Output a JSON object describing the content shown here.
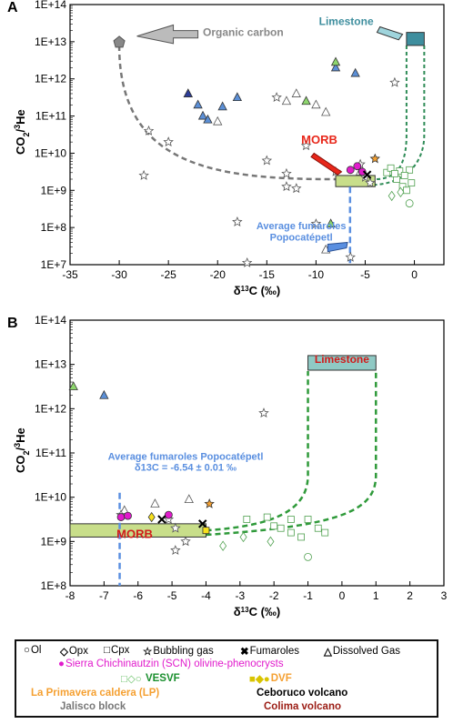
{
  "chart_data": [
    {
      "panel": "A",
      "type": "scatter",
      "xlabel": "δ13C (‰)",
      "ylabel": "CO2/3He",
      "xlim": [
        -35,
        3
      ],
      "ylim_log10": [
        7,
        14
      ],
      "x_ticks": [
        "-35",
        "-30",
        "-25",
        "-20",
        "-15",
        "-10",
        "-5",
        "0"
      ],
      "x_tick_values": [
        -35,
        -30,
        -25,
        -20,
        -15,
        -10,
        -5,
        0
      ],
      "y_ticks": [
        "1E+7",
        "1E+8",
        "1E+9",
        "1E+10",
        "1E+11",
        "1E+12",
        "1E+13",
        "1E+14"
      ],
      "y_tick_values": [
        7,
        8,
        9,
        10,
        11,
        12,
        13,
        14
      ],
      "annotations": {
        "organic": "Organic carbon",
        "limestone": "Limestone",
        "morb": "MORB",
        "fumaroles_line1": "Average fumaroles",
        "fumaroles_line2": "Popocatépetl"
      },
      "endmembers": {
        "organic_carbon": {
          "x": -30,
          "y_log10": 13.0
        },
        "limestone": {
          "x": 0,
          "y_log10": 13.1
        },
        "morb": {
          "x_range": [
            -8,
            -4
          ],
          "y_log10_range": [
            9.1,
            9.4
          ]
        }
      },
      "fumaroles_popocatepetl_x": -6.54,
      "series": [
        {
          "name": "Jalisco block",
          "marker": "triangle",
          "color": "#5b8fd6",
          "points": [
            [
              -23,
              11.6
            ],
            [
              -22,
              11.3
            ],
            [
              -21.5,
              11
            ],
            [
              -21,
              10.9
            ],
            [
              -19.5,
              11.25
            ],
            [
              -18,
              11.5
            ],
            [
              -8,
              12.3
            ],
            [
              -6,
              12.15
            ]
          ]
        },
        {
          "name": "Ceboruco volcano",
          "marker": "triangle",
          "color": "#2d3d99",
          "points": [
            [
              -23,
              11.6
            ]
          ]
        },
        {
          "name": "VESVF",
          "marker": "triangle",
          "color": "#8ed66e",
          "points": [
            [
              -8,
              12.45
            ],
            [
              -11,
              11.4
            ],
            [
              -8.5,
              8.1
            ]
          ]
        },
        {
          "name": "Dissolved Gas",
          "marker": "triangle",
          "color": "#ffffff",
          "points": [
            [
              -20,
              10.85
            ],
            [
              -13,
              11.4
            ],
            [
              -12,
              11.6
            ],
            [
              -10,
              11.3
            ],
            [
              -9,
              11.1
            ],
            [
              -5.5,
              9.5
            ],
            [
              -9,
              7.4
            ]
          ]
        },
        {
          "name": "Bubbling gas",
          "marker": "star",
          "color": "#ffffff",
          "points": [
            [
              -27,
              10.6
            ],
            [
              -25,
              10.3
            ],
            [
              -27.5,
              9.4
            ],
            [
              -15,
              9.8
            ],
            [
              -14,
              11.5
            ],
            [
              -13,
              9.45
            ],
            [
              -12,
              9.05
            ],
            [
              -13,
              9.1
            ],
            [
              -10,
              8.1
            ],
            [
              -8,
              9.5
            ],
            [
              -5.5,
              9.7
            ],
            [
              -5,
              9.35
            ],
            [
              -4.5,
              9.2
            ],
            [
              -2,
              11.9
            ],
            [
              -11,
              10.2
            ],
            [
              -18,
              8.15
            ],
            [
              -17,
              7.05
            ],
            [
              -6.5,
              7.2
            ]
          ]
        },
        {
          "name": "Sierra Chichinautzin (SCN) olivine-phenocrysts",
          "marker": "circle",
          "color": "#e11bcc",
          "points": [
            [
              -6.5,
              9.55
            ],
            [
              -5.8,
              9.65
            ],
            [
              -5.3,
              9.5
            ]
          ]
        },
        {
          "name": "La Primavera caldera (LP)",
          "marker": "star",
          "color": "#f5a031",
          "points": [
            [
              -4,
              9.85
            ]
          ]
        },
        {
          "name": "Fumaroles",
          "marker": "x",
          "color": "#000000",
          "points": [
            [
              -4.8,
              9.42
            ]
          ]
        },
        {
          "name": "VESVF minerals",
          "marker": "square",
          "color": "#ffffff",
          "points": [
            [
              -2.8,
              9.48
            ],
            [
              -2.4,
              9.6
            ],
            [
              -1.5,
              9.52
            ],
            [
              -0.5,
              9.55
            ],
            [
              -1.8,
              9.3
            ],
            [
              -1.2,
              9.1
            ],
            [
              -0.8,
              9.0
            ],
            [
              -0.3,
              9.2
            ],
            [
              -2.0,
              9.45
            ],
            [
              -1.0,
              9.4
            ]
          ]
        },
        {
          "name": "VESVF diamonds",
          "marker": "diamond",
          "color": "#ffffff",
          "points": [
            [
              -2.3,
              8.85
            ],
            [
              -1.4,
              8.95
            ]
          ]
        },
        {
          "name": "VESVF circles",
          "marker": "circle",
          "color": "#ffffff",
          "points": [
            [
              -0.5,
              8.65
            ]
          ]
        }
      ]
    },
    {
      "panel": "B",
      "type": "scatter",
      "xlabel": "δ13C (‰)",
      "ylabel": "CO2/3He",
      "xlim": [
        -8,
        3
      ],
      "ylim_log10": [
        8,
        14
      ],
      "x_ticks": [
        "-8",
        "-7",
        "-6",
        "-5",
        "-4",
        "-3",
        "-2",
        "-1",
        "0",
        "1",
        "2",
        "3"
      ],
      "x_tick_values": [
        -8,
        -7,
        -6,
        -5,
        -4,
        -3,
        -2,
        -1,
        0,
        1,
        2,
        3
      ],
      "y_ticks": [
        "1E+8",
        "1E+9",
        "1E+10",
        "1E+11",
        "1E+12",
        "1E+13",
        "1E+14"
      ],
      "y_tick_values": [
        8,
        9,
        10,
        11,
        12,
        13,
        14
      ],
      "annotations": {
        "limestone": "Limestone",
        "morb": "MORB",
        "fumaroles_line1": "Average fumaroles Popocatépetl",
        "fumaroles_line2": "δ13C = -6.54 ± 0.01 ‰"
      },
      "fumaroles_popocatepetl_x": -6.54,
      "morb": {
        "x_range": [
          -8,
          -4
        ],
        "y_log10_range": [
          9.1,
          9.4
        ]
      },
      "limestone": {
        "x_range": [
          -1,
          1
        ],
        "y_log10": 13.1
      },
      "series": [
        {
          "name": "Jalisco block",
          "marker": "triangle",
          "color": "#5b8fd6",
          "points": [
            [
              -7,
              12.3
            ]
          ]
        },
        {
          "name": "VESVF",
          "marker": "triangle",
          "color": "#8ed66e",
          "points": [
            [
              -7.9,
              12.5
            ]
          ]
        },
        {
          "name": "Dissolved Gas",
          "marker": "triangle",
          "color": "#ffffff",
          "points": [
            [
              -6.4,
              9.7
            ],
            [
              -5.5,
              9.85
            ],
            [
              -4.5,
              9.95
            ]
          ]
        },
        {
          "name": "Bubbling gas",
          "marker": "star",
          "color": "#ffffff",
          "points": [
            [
              -6.5,
              9.6
            ],
            [
              -5.1,
              9.5
            ],
            [
              -4.9,
              9.3
            ],
            [
              -4.6,
              9.0
            ],
            [
              -2.3,
              11.9
            ],
            [
              -4.9,
              8.8
            ]
          ]
        },
        {
          "name": "Sierra Chichinautzin (SCN) olivine-phenocrysts",
          "marker": "circle",
          "color": "#e11bcc",
          "points": [
            [
              -6.5,
              9.55
            ],
            [
              -6.3,
              9.58
            ],
            [
              -5.1,
              9.6
            ]
          ]
        },
        {
          "name": "La Primavera caldera (LP)",
          "marker": "star",
          "color": "#f5a031",
          "points": [
            [
              -3.9,
              9.85
            ]
          ]
        },
        {
          "name": "DVF",
          "marker": "diamond",
          "color": "#f7e11c",
          "points": [
            [
              -5.6,
              9.55
            ]
          ]
        },
        {
          "name": "Fumaroles",
          "marker": "x",
          "color": "#000000",
          "points": [
            [
              -4.1,
              9.4
            ],
            [
              -5.3,
              9.5
            ]
          ]
        },
        {
          "name": "VESVF minerals",
          "marker": "square",
          "color": "#ffffff",
          "points": [
            [
              -2.8,
              9.5
            ],
            [
              -2.2,
              9.55
            ],
            [
              -1.5,
              9.5
            ],
            [
              -1.0,
              9.5
            ],
            [
              -0.7,
              9.3
            ],
            [
              -1.8,
              9.3
            ],
            [
              -1.5,
              9.2
            ],
            [
              -0.5,
              9.2
            ],
            [
              -2.0,
              9.35
            ],
            [
              -1.2,
              9.1
            ]
          ]
        },
        {
          "name": "VESVF diamonds",
          "marker": "diamond",
          "color": "#ffffff",
          "points": [
            [
              -2.9,
              9.1
            ],
            [
              -2.1,
              9.0
            ],
            [
              -3.5,
              8.9
            ]
          ]
        },
        {
          "name": "VESVF circles",
          "marker": "circle",
          "color": "#ffffff",
          "points": [
            [
              -1.0,
              8.65
            ]
          ]
        },
        {
          "name": "DVF square",
          "marker": "square",
          "color": "#f7e11c",
          "points": [
            [
              -4,
              9.25
            ]
          ]
        }
      ]
    }
  ],
  "legend": {
    "ol": "Ol",
    "opx": "Opx",
    "cpx": "Cpx",
    "bubbling": "Bubbling gas",
    "fumaroles": "Fumaroles",
    "dissolved": "Dissolved Gas",
    "scn": "Sierra Chichinautzin (SCN) olivine-phenocrysts",
    "vesvf": "VESVF",
    "dvf": "DVF",
    "lp": "La Primavera caldera (LP)",
    "ceboruco": "Ceboruco volcano",
    "jalisco": "Jalisco block",
    "colima": "Colima volcano",
    "colors": {
      "scn": "#e11bcc",
      "vesvf": "#1a8f2e",
      "dvf": "#f5a031",
      "lp": "#f5a031",
      "ceboruco": "#000000",
      "jalisco": "#777777",
      "colima": "#9b1c14"
    }
  }
}
